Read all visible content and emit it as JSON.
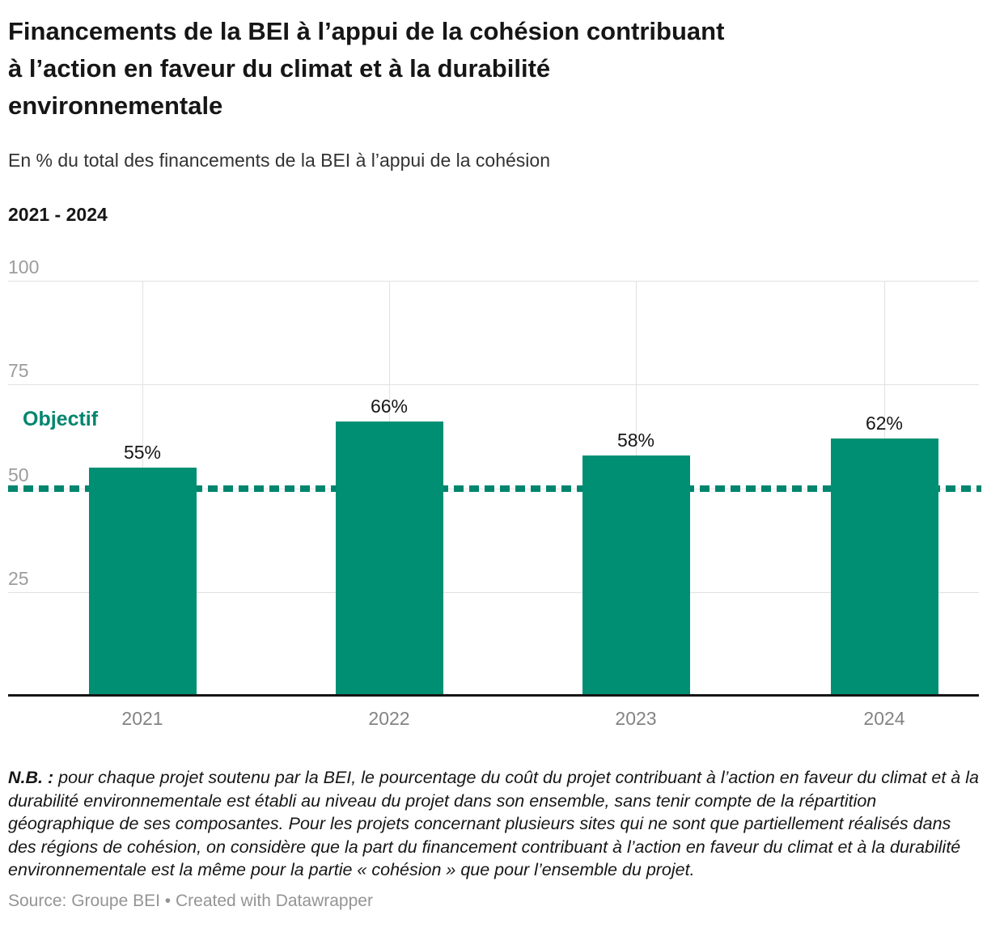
{
  "header": {
    "title_lines": [
      "Financements de la BEI à l’appui de la cohésion contribuant",
      "à l’action en faveur du climat et à la durabilité",
      "environnementale"
    ],
    "subtitle": "En % du total des financements de la BEI à l’appui de la cohésion",
    "range_label": "2021 - 2024"
  },
  "chart_data": {
    "type": "bar",
    "title": "Financements de la BEI à l’appui de la cohésion contribuant à l’action en faveur du climat et à la durabilité environnementale",
    "subtitle": "En % du total des financements de la BEI à l’appui de la cohésion",
    "categories": [
      "2021",
      "2022",
      "2023",
      "2024"
    ],
    "values": [
      55,
      66,
      58,
      62
    ],
    "value_labels": [
      "55%",
      "66%",
      "58%",
      "62%"
    ],
    "xlabel": "",
    "ylabel": "",
    "ylim": [
      0,
      100
    ],
    "yticks": [
      100,
      75,
      50,
      25
    ],
    "grid": "horizontal and vertical, light gray",
    "legend": "none",
    "target_line": {
      "label": "Objectif",
      "value": 50
    }
  },
  "colors": {
    "bar": "#008f73",
    "target": "#00856e",
    "grid": "#e1e1e1",
    "tick_labels": "#9c9c9c",
    "x_labels": "#838383"
  },
  "footer": {
    "note_prefix": "N.B. :",
    "note_text": " pour chaque projet soutenu par la BEI, le pourcentage du coût du projet contribuant à l’action en faveur du climat et à la durabilité environnementale est établi au niveau du projet dans son ensemble, sans tenir compte de la répartition géographique de ses composantes. Pour les projets concernant plusieurs sites qui ne sont que partiellement réalisés dans des régions de cohésion, on considère que la part du financement contribuant à l’action en faveur du climat et à la durabilité environnementale est la même pour la partie « cohésion » que pour l’ensemble du projet.",
    "source_label": "Source: ",
    "source_name": "Groupe BEI",
    "separator": " • ",
    "credit": "Created with Datawrapper"
  }
}
